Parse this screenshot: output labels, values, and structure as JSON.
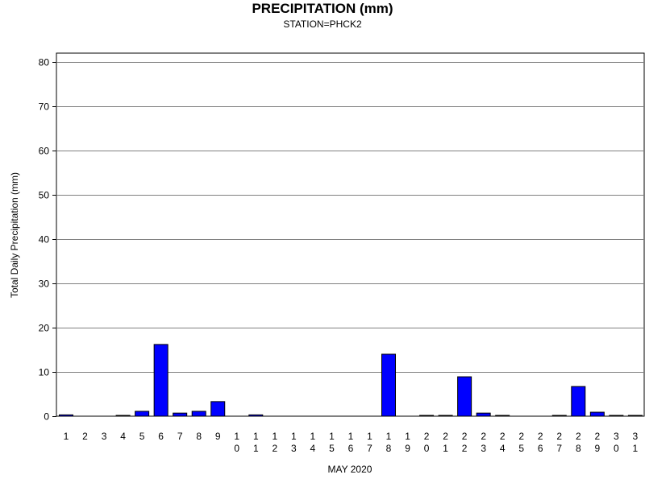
{
  "chart_data": {
    "type": "bar",
    "title": "PRECIPITATION (mm)",
    "subtitle": "STATION=PHCK2",
    "xlabel": "MAY 2020",
    "ylabel": "Total Daily Precipitation (mm)",
    "ylim": [
      0,
      80
    ],
    "yticks": [
      0,
      10,
      20,
      30,
      40,
      50,
      60,
      70,
      80
    ],
    "grid": true,
    "categories": [
      "1",
      "2",
      "3",
      "4",
      "5",
      "6",
      "7",
      "8",
      "9",
      "10",
      "11",
      "12",
      "13",
      "14",
      "15",
      "16",
      "17",
      "18",
      "19",
      "20",
      "21",
      "22",
      "23",
      "24",
      "25",
      "26",
      "27",
      "28",
      "29",
      "30",
      "31"
    ],
    "values": [
      0.3,
      null,
      null,
      0.1,
      1.1,
      16.2,
      0.7,
      1.1,
      3.3,
      null,
      0.3,
      null,
      null,
      null,
      null,
      null,
      null,
      14.0,
      null,
      0.1,
      0.1,
      8.9,
      0.7,
      0.1,
      null,
      null,
      0.1,
      6.7,
      0.9,
      0.1,
      0.1
    ],
    "bar_color": "#0000ff"
  }
}
